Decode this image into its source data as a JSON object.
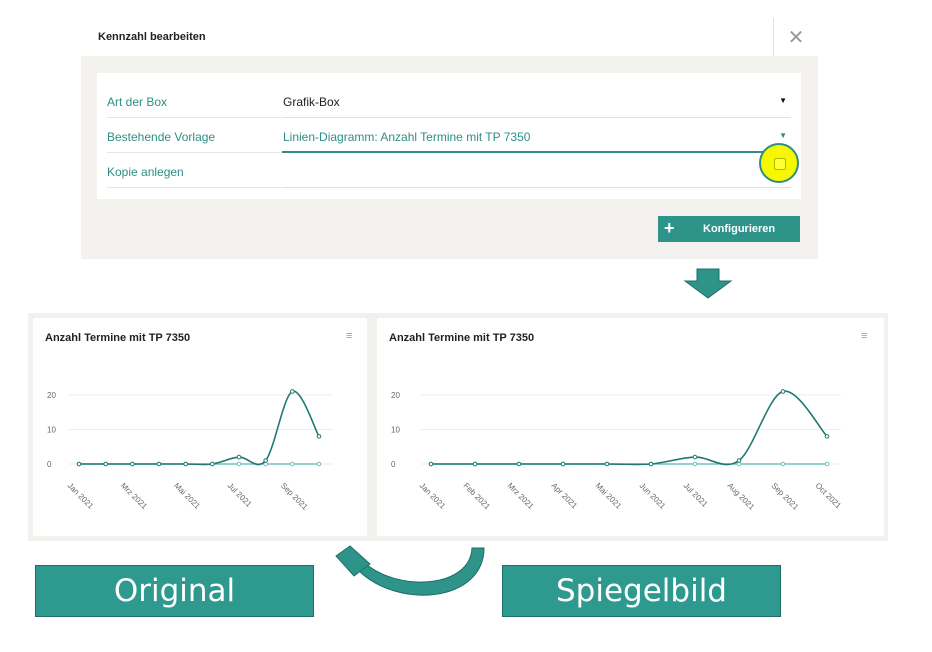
{
  "dialog": {
    "title": "Kennzahl bearbeiten",
    "close_label": "✕",
    "fields": [
      {
        "label": "Art der Box",
        "value": "Grafik-Box"
      },
      {
        "label": "Bestehende Vorlage",
        "value": "Linien-Diagramm: Anzahl Termine mit TP 7350"
      },
      {
        "label": "Kopie anlegen",
        "value": ""
      }
    ],
    "config_button": {
      "icon": "+",
      "label": "Konfigurieren"
    },
    "accent": "#2e948a",
    "highlight": "#f7f700"
  },
  "menu_icon": "≡",
  "captions": {
    "original": "Original",
    "mirror": "Spiegelbild"
  },
  "chart_data": [
    {
      "type": "line",
      "title": "Anzahl Termine mit TP 7350",
      "categories": [
        "Jan 2021",
        "Feb 2021",
        "Mrz 2021",
        "Apr 2021",
        "Mai 2021",
        "Jun 2021",
        "Jul 2021",
        "Aug 2021",
        "Sep 2021",
        "Okt 2021"
      ],
      "x_tick_labels": [
        "Jan 2021",
        "Mrz 2021",
        "Mai 2021",
        "Jul 2021",
        "Sep 2021"
      ],
      "y_ticks": [
        0,
        10,
        20
      ],
      "series": [
        {
          "values": [
            0,
            0,
            0,
            0,
            0,
            0,
            2,
            1,
            21,
            8
          ],
          "color": "#1e7a70"
        },
        {
          "values": [
            0,
            0,
            0,
            0,
            0,
            0,
            0,
            0,
            0,
            0
          ],
          "color": "#6fc3b8"
        }
      ],
      "ylim": [
        0,
        22
      ],
      "grid": true
    },
    {
      "type": "line",
      "title": "Anzahl Termine mit TP 7350",
      "categories": [
        "Jan 2021",
        "Feb 2021",
        "Mrz 2021",
        "Apr 2021",
        "Mai 2021",
        "Jun 2021",
        "Jul 2021",
        "Aug 2021",
        "Sep 2021",
        "Oct 2021"
      ],
      "x_tick_labels": [
        "Jan 2021",
        "Feb 2021",
        "Mrz 2021",
        "Apr 2021",
        "Mai 2021",
        "Jun 2021",
        "Jul 2021",
        "Aug 2021",
        "Sep 2021",
        "Oct 2021"
      ],
      "y_ticks": [
        0,
        10,
        20
      ],
      "series": [
        {
          "values": [
            0,
            0,
            0,
            0,
            0,
            0,
            2,
            1,
            21,
            8
          ],
          "color": "#1e7a70"
        },
        {
          "values": [
            0,
            0,
            0,
            0,
            0,
            0,
            0,
            0,
            0,
            0
          ],
          "color": "#6fc3b8"
        }
      ],
      "ylim": [
        0,
        22
      ],
      "grid": true
    }
  ]
}
